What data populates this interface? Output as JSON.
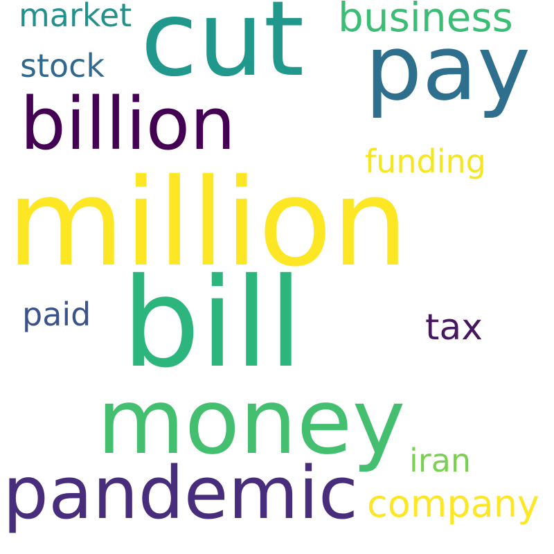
{
  "word_cloud": {
    "words": [
      {
        "text": "million",
        "color": "#fde725"
      },
      {
        "text": "bill",
        "color": "#2cb67d"
      },
      {
        "text": "money",
        "color": "#44bf70"
      },
      {
        "text": "cut",
        "color": "#21988c"
      },
      {
        "text": "pay",
        "color": "#2e6f8e"
      },
      {
        "text": "billion",
        "color": "#440154"
      },
      {
        "text": "pandemic",
        "color": "#472d7b"
      },
      {
        "text": "business",
        "color": "#3bbd75"
      },
      {
        "text": "market",
        "color": "#21918c"
      },
      {
        "text": "stock",
        "color": "#31688e"
      },
      {
        "text": "funding",
        "color": "#f5e61f"
      },
      {
        "text": "paid",
        "color": "#3b528b"
      },
      {
        "text": "tax",
        "color": "#46185f"
      },
      {
        "text": "iran",
        "color": "#7ad151"
      },
      {
        "text": "company",
        "color": "#fde725"
      }
    ]
  }
}
